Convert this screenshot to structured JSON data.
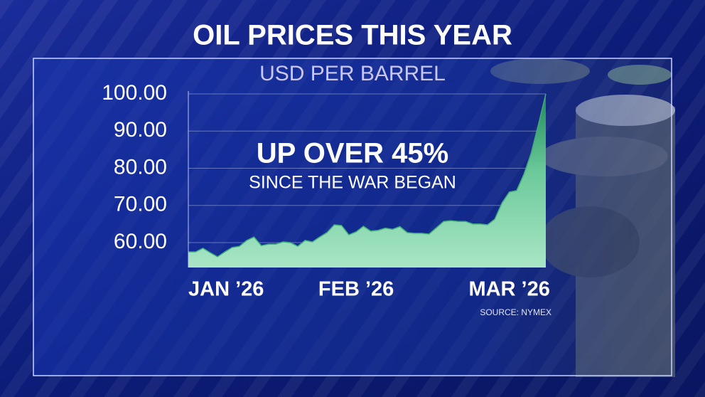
{
  "chart_data": {
    "type": "area",
    "title": "OIL PRICES THIS YEAR",
    "subtitle": "USD PER BARREL",
    "annotations": [
      "UP OVER 45%",
      "SINCE THE WAR BEGAN"
    ],
    "source": "SOURCE: NYMEX",
    "values": [
      57.5,
      57.5,
      58.5,
      57.3,
      56.2,
      57.5,
      58.7,
      59.0,
      60.6,
      61.5,
      59.2,
      59.6,
      59.6,
      60.2,
      60.0,
      59.0,
      60.6,
      60.2,
      61.5,
      62.7,
      64.8,
      64.6,
      62.1,
      62.9,
      64.4,
      63.1,
      63.3,
      63.9,
      63.6,
      64.3,
      62.7,
      62.5,
      62.5,
      62.3,
      64.0,
      65.7,
      65.9,
      65.7,
      65.7,
      65.0,
      65.0,
      64.8,
      66.3,
      70.7,
      73.6,
      74.0,
      78.4,
      84.1,
      91.8,
      100.0
    ],
    "xlim": [
      0,
      49
    ],
    "xticks": [
      {
        "value": 0,
        "label": "JAN ’26"
      },
      {
        "value": 23,
        "label": "FEB ’26"
      },
      {
        "value": 44,
        "label": "MAR ’26"
      }
    ],
    "ylim": [
      53.3,
      100
    ],
    "yticks": [
      {
        "value": 60,
        "label": "60.00"
      },
      {
        "value": 70,
        "label": "70.00"
      },
      {
        "value": 80,
        "label": "80.00"
      },
      {
        "value": 90,
        "label": "90.00"
      },
      {
        "value": 100,
        "label": "100.00"
      }
    ],
    "grid": true,
    "color": "#3fae78"
  }
}
